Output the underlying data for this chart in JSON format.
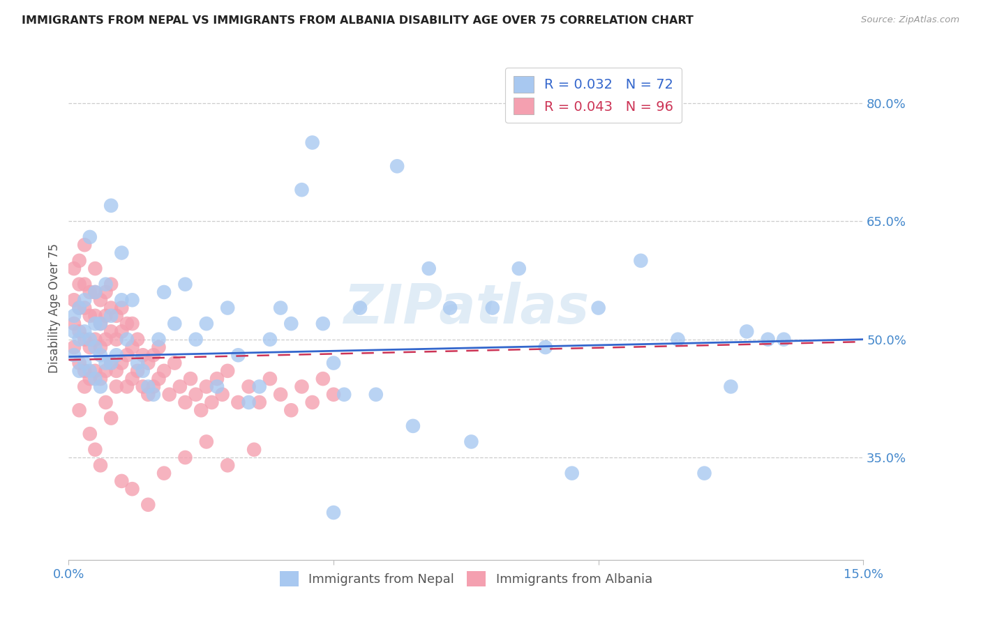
{
  "title": "IMMIGRANTS FROM NEPAL VS IMMIGRANTS FROM ALBANIA DISABILITY AGE OVER 75 CORRELATION CHART",
  "source": "Source: ZipAtlas.com",
  "xlabel_nepal": "Immigrants from Nepal",
  "xlabel_albania": "Immigrants from Albania",
  "ylabel": "Disability Age Over 75",
  "xlim": [
    0.0,
    0.15
  ],
  "ylim": [
    0.22,
    0.86
  ],
  "yticks": [
    0.35,
    0.5,
    0.65,
    0.8
  ],
  "ytick_labels": [
    "35.0%",
    "50.0%",
    "65.0%",
    "80.0%"
  ],
  "xticks": [
    0.0,
    0.05,
    0.1,
    0.15
  ],
  "xtick_labels": [
    "0.0%",
    "",
    "",
    "15.0%"
  ],
  "nepal_R": 0.032,
  "nepal_N": 72,
  "albania_R": 0.043,
  "albania_N": 96,
  "nepal_color": "#a8c8f0",
  "albania_color": "#f4a0b0",
  "nepal_line_color": "#3366cc",
  "albania_line_color": "#cc3355",
  "watermark": "ZIPatlas",
  "background_color": "#ffffff",
  "nepal_x": [
    0.001,
    0.001,
    0.001,
    0.002,
    0.002,
    0.002,
    0.003,
    0.003,
    0.003,
    0.004,
    0.004,
    0.004,
    0.005,
    0.005,
    0.005,
    0.005,
    0.006,
    0.006,
    0.006,
    0.007,
    0.007,
    0.008,
    0.008,
    0.009,
    0.01,
    0.01,
    0.011,
    0.012,
    0.013,
    0.014,
    0.015,
    0.016,
    0.017,
    0.018,
    0.02,
    0.022,
    0.024,
    0.026,
    0.028,
    0.03,
    0.032,
    0.034,
    0.036,
    0.038,
    0.04,
    0.042,
    0.044,
    0.046,
    0.048,
    0.05,
    0.052,
    0.055,
    0.058,
    0.062,
    0.065,
    0.068,
    0.072,
    0.076,
    0.08,
    0.085,
    0.09,
    0.095,
    0.1,
    0.108,
    0.115,
    0.12,
    0.125,
    0.128,
    0.132,
    0.135,
    0.008,
    0.05
  ],
  "nepal_y": [
    0.48,
    0.51,
    0.53,
    0.46,
    0.5,
    0.54,
    0.47,
    0.51,
    0.55,
    0.46,
    0.5,
    0.63,
    0.45,
    0.49,
    0.52,
    0.56,
    0.44,
    0.48,
    0.52,
    0.47,
    0.57,
    0.47,
    0.53,
    0.48,
    0.55,
    0.61,
    0.5,
    0.55,
    0.47,
    0.46,
    0.44,
    0.43,
    0.5,
    0.56,
    0.52,
    0.57,
    0.5,
    0.52,
    0.44,
    0.54,
    0.48,
    0.42,
    0.44,
    0.5,
    0.54,
    0.52,
    0.69,
    0.75,
    0.52,
    0.47,
    0.43,
    0.54,
    0.43,
    0.72,
    0.39,
    0.59,
    0.54,
    0.37,
    0.54,
    0.59,
    0.49,
    0.33,
    0.54,
    0.6,
    0.5,
    0.33,
    0.44,
    0.51,
    0.5,
    0.5,
    0.67,
    0.28
  ],
  "albania_x": [
    0.001,
    0.001,
    0.001,
    0.001,
    0.002,
    0.002,
    0.002,
    0.002,
    0.002,
    0.003,
    0.003,
    0.003,
    0.003,
    0.003,
    0.004,
    0.004,
    0.004,
    0.004,
    0.005,
    0.005,
    0.005,
    0.005,
    0.005,
    0.006,
    0.006,
    0.006,
    0.006,
    0.007,
    0.007,
    0.007,
    0.007,
    0.008,
    0.008,
    0.008,
    0.008,
    0.009,
    0.009,
    0.009,
    0.01,
    0.01,
    0.01,
    0.011,
    0.011,
    0.011,
    0.012,
    0.012,
    0.012,
    0.013,
    0.013,
    0.014,
    0.014,
    0.015,
    0.015,
    0.016,
    0.016,
    0.017,
    0.017,
    0.018,
    0.019,
    0.02,
    0.021,
    0.022,
    0.023,
    0.024,
    0.025,
    0.026,
    0.027,
    0.028,
    0.029,
    0.03,
    0.032,
    0.034,
    0.036,
    0.038,
    0.04,
    0.042,
    0.044,
    0.046,
    0.048,
    0.05,
    0.002,
    0.003,
    0.004,
    0.005,
    0.006,
    0.007,
    0.008,
    0.009,
    0.01,
    0.012,
    0.015,
    0.018,
    0.022,
    0.026,
    0.03,
    0.035
  ],
  "albania_y": [
    0.49,
    0.52,
    0.55,
    0.59,
    0.47,
    0.51,
    0.54,
    0.57,
    0.6,
    0.46,
    0.5,
    0.54,
    0.57,
    0.62,
    0.45,
    0.49,
    0.53,
    0.56,
    0.46,
    0.5,
    0.53,
    0.56,
    0.59,
    0.45,
    0.49,
    0.52,
    0.55,
    0.46,
    0.5,
    0.53,
    0.56,
    0.47,
    0.51,
    0.54,
    0.57,
    0.46,
    0.5,
    0.53,
    0.47,
    0.51,
    0.54,
    0.44,
    0.48,
    0.52,
    0.45,
    0.49,
    0.52,
    0.46,
    0.5,
    0.44,
    0.48,
    0.43,
    0.47,
    0.44,
    0.48,
    0.45,
    0.49,
    0.46,
    0.43,
    0.47,
    0.44,
    0.42,
    0.45,
    0.43,
    0.41,
    0.44,
    0.42,
    0.45,
    0.43,
    0.46,
    0.42,
    0.44,
    0.42,
    0.45,
    0.43,
    0.41,
    0.44,
    0.42,
    0.45,
    0.43,
    0.41,
    0.44,
    0.38,
    0.36,
    0.34,
    0.42,
    0.4,
    0.44,
    0.32,
    0.31,
    0.29,
    0.33,
    0.35,
    0.37,
    0.34,
    0.36
  ]
}
